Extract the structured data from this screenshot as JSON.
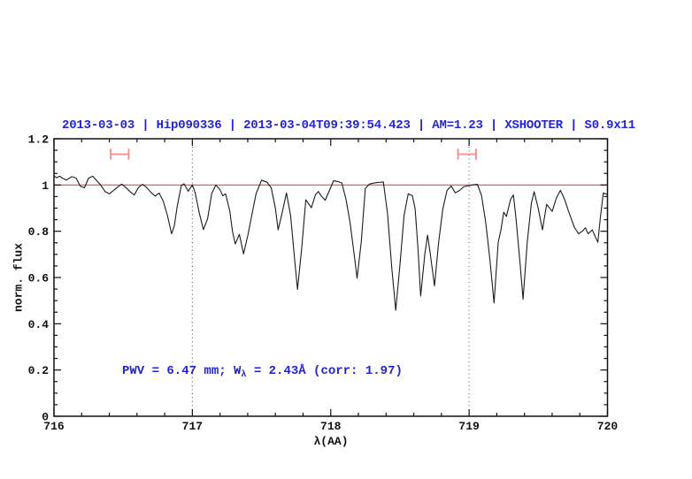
{
  "chart_data": {
    "type": "line",
    "title": "2013-03-03 | Hip090336 | 2013-03-04T09:39:54.423 | AM=1.23 | XSHOOTER | S0.9x11",
    "title_color": "#2323d3",
    "xlabel": "λ(AA)",
    "ylabel": "norm. flux",
    "xlim": [
      716,
      720
    ],
    "ylim": [
      0,
      1.2
    ],
    "x_major_ticks": [
      716,
      717,
      718,
      719,
      720
    ],
    "x_tick_labels": [
      "716",
      "717",
      "718",
      "719",
      "720"
    ],
    "x_minor_step": 0.2,
    "y_major_ticks": [
      0,
      0.2,
      0.4,
      0.6,
      0.8,
      1,
      1.2
    ],
    "y_tick_labels": [
      "0",
      "0.2",
      "0.4",
      "0.6",
      "0.8",
      "1",
      "1.2"
    ],
    "y_minor_step": 0.05,
    "grid": "off",
    "legend": "none",
    "dotted_guides_x": [
      717,
      719
    ],
    "continuum": {
      "y": 1.0,
      "color": "#e04f4f"
    },
    "band_marker_color": "#f09494",
    "band_markers": [
      {
        "x_start": 716.41,
        "x_end": 716.54,
        "y": 1.133,
        "cap_half_height": 0.024
      },
      {
        "x_start": 718.92,
        "x_end": 719.05,
        "y": 1.133,
        "cap_half_height": 0.024
      }
    ],
    "series": [
      {
        "name": "telluric-spectrum",
        "color": "#1c1c1c",
        "points": [
          [
            716.0,
            1.04
          ],
          [
            716.02,
            1.031
          ],
          [
            716.04,
            1.038
          ],
          [
            716.07,
            1.027
          ],
          [
            716.09,
            1.021
          ],
          [
            716.11,
            1.029
          ],
          [
            716.13,
            1.036
          ],
          [
            716.16,
            1.03
          ],
          [
            716.19,
            0.995
          ],
          [
            716.22,
            0.988
          ],
          [
            716.25,
            1.03
          ],
          [
            716.28,
            1.038
          ],
          [
            716.31,
            1.018
          ],
          [
            716.34,
            0.998
          ],
          [
            716.37,
            0.971
          ],
          [
            716.4,
            0.962
          ],
          [
            716.43,
            0.976
          ],
          [
            716.46,
            0.991
          ],
          [
            716.49,
            1.004
          ],
          [
            716.52,
            0.989
          ],
          [
            716.55,
            0.971
          ],
          [
            716.58,
            0.957
          ],
          [
            716.61,
            0.989
          ],
          [
            716.64,
            1.003
          ],
          [
            716.67,
            0.989
          ],
          [
            716.7,
            0.968
          ],
          [
            716.73,
            0.952
          ],
          [
            716.76,
            0.965
          ],
          [
            716.79,
            0.93
          ],
          [
            716.82,
            0.868
          ],
          [
            716.85,
            0.789
          ],
          [
            716.87,
            0.823
          ],
          [
            716.89,
            0.906
          ],
          [
            716.92,
            0.998
          ],
          [
            716.94,
            1.005
          ],
          [
            716.97,
            0.973
          ],
          [
            717.0,
            1.001
          ],
          [
            717.02,
            0.967
          ],
          [
            717.05,
            0.879
          ],
          [
            717.08,
            0.807
          ],
          [
            717.11,
            0.854
          ],
          [
            717.14,
            0.964
          ],
          [
            717.17,
            1.0
          ],
          [
            717.2,
            0.979
          ],
          [
            717.22,
            0.953
          ],
          [
            717.24,
            0.962
          ],
          [
            717.27,
            0.889
          ],
          [
            717.29,
            0.8
          ],
          [
            717.31,
            0.745
          ],
          [
            717.34,
            0.787
          ],
          [
            717.37,
            0.702
          ],
          [
            717.4,
            0.779
          ],
          [
            717.43,
            0.87
          ],
          [
            717.46,
            0.961
          ],
          [
            717.5,
            1.021
          ],
          [
            717.54,
            1.012
          ],
          [
            717.57,
            0.988
          ],
          [
            717.6,
            0.9
          ],
          [
            717.62,
            0.806
          ],
          [
            717.65,
            0.882
          ],
          [
            717.68,
            0.966
          ],
          [
            717.71,
            0.868
          ],
          [
            717.74,
            0.672
          ],
          [
            717.76,
            0.548
          ],
          [
            717.79,
            0.725
          ],
          [
            717.82,
            0.936
          ],
          [
            717.84,
            0.919
          ],
          [
            717.86,
            0.902
          ],
          [
            717.89,
            0.958
          ],
          [
            717.91,
            0.972
          ],
          [
            717.93,
            0.954
          ],
          [
            717.96,
            0.934
          ],
          [
            717.99,
            0.976
          ],
          [
            718.02,
            1.018
          ],
          [
            718.05,
            1.015
          ],
          [
            718.08,
            1.009
          ],
          [
            718.11,
            0.938
          ],
          [
            718.14,
            0.838
          ],
          [
            718.17,
            0.698
          ],
          [
            718.19,
            0.597
          ],
          [
            718.22,
            0.752
          ],
          [
            718.25,
            0.985
          ],
          [
            718.28,
            1.004
          ],
          [
            718.31,
            1.008
          ],
          [
            718.34,
            1.011
          ],
          [
            718.38,
            1.013
          ],
          [
            718.41,
            0.878
          ],
          [
            718.44,
            0.648
          ],
          [
            718.47,
            0.458
          ],
          [
            718.5,
            0.652
          ],
          [
            718.53,
            0.868
          ],
          [
            718.56,
            0.962
          ],
          [
            718.59,
            0.954
          ],
          [
            718.61,
            0.898
          ],
          [
            718.63,
            0.728
          ],
          [
            718.65,
            0.52
          ],
          [
            718.68,
            0.702
          ],
          [
            718.7,
            0.783
          ],
          [
            718.72,
            0.7
          ],
          [
            718.75,
            0.564
          ],
          [
            718.78,
            0.752
          ],
          [
            718.81,
            0.896
          ],
          [
            718.84,
            0.976
          ],
          [
            718.87,
            0.996
          ],
          [
            718.9,
            0.966
          ],
          [
            718.93,
            0.976
          ],
          [
            718.96,
            0.992
          ],
          [
            719.0,
            0.998
          ],
          [
            719.03,
            1.001
          ],
          [
            719.06,
            1.003
          ],
          [
            719.09,
            0.954
          ],
          [
            719.12,
            0.838
          ],
          [
            719.15,
            0.678
          ],
          [
            719.18,
            0.49
          ],
          [
            719.21,
            0.752
          ],
          [
            719.23,
            0.806
          ],
          [
            719.25,
            0.882
          ],
          [
            719.27,
            0.864
          ],
          [
            719.3,
            0.938
          ],
          [
            719.32,
            0.957
          ],
          [
            719.34,
            0.848
          ],
          [
            719.37,
            0.648
          ],
          [
            719.39,
            0.506
          ],
          [
            719.42,
            0.752
          ],
          [
            719.45,
            0.922
          ],
          [
            719.47,
            0.971
          ],
          [
            719.5,
            0.898
          ],
          [
            719.53,
            0.806
          ],
          [
            719.56,
            0.916
          ],
          [
            719.58,
            0.901
          ],
          [
            719.6,
            0.886
          ],
          [
            719.63,
            0.942
          ],
          [
            719.66,
            0.977
          ],
          [
            719.69,
            0.938
          ],
          [
            719.72,
            0.884
          ],
          [
            719.76,
            0.818
          ],
          [
            719.79,
            0.789
          ],
          [
            719.82,
            0.801
          ],
          [
            719.84,
            0.815
          ],
          [
            719.86,
            0.789
          ],
          [
            719.89,
            0.806
          ],
          [
            719.91,
            0.779
          ],
          [
            719.93,
            0.752
          ],
          [
            719.95,
            0.868
          ],
          [
            719.97,
            0.966
          ],
          [
            720.0,
            0.958
          ]
        ]
      }
    ],
    "annotation": {
      "part1": "PWV = 6.47 mm; W",
      "sub": "λ",
      "part2": " = 2.43Å (corr: 1.97)",
      "color": "#2323d3"
    }
  }
}
